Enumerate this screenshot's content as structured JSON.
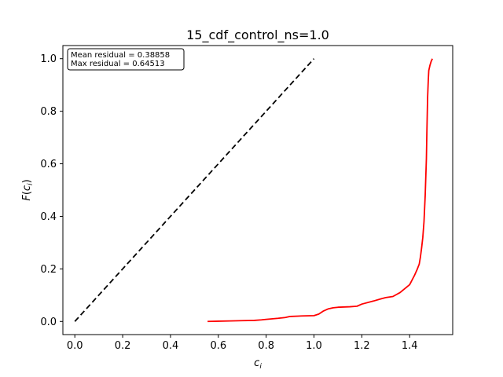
{
  "chart_data": {
    "type": "line",
    "title": "15_cdf_control_ns=1.0",
    "xlabel": "c_i",
    "ylabel": "F(c_i)",
    "xlim": [
      -0.05,
      1.58
    ],
    "ylim": [
      -0.05,
      1.05
    ],
    "x_ticks": [
      0.0,
      0.2,
      0.4,
      0.6,
      0.8,
      1.0,
      1.2,
      1.4
    ],
    "x_tick_labels": [
      "0.0",
      "0.2",
      "0.4",
      "0.6",
      "0.8",
      "1.0",
      "1.2",
      "1.4"
    ],
    "y_ticks": [
      0.0,
      0.2,
      0.4,
      0.6,
      0.8,
      1.0
    ],
    "y_tick_labels": [
      "0.0",
      "0.2",
      "0.4",
      "0.6",
      "0.8",
      "1.0"
    ],
    "grid": false,
    "annotation": {
      "lines": [
        "Mean residual = 0.38858",
        "Max residual = 0.64513"
      ],
      "placement": "top-left"
    },
    "series": [
      {
        "style": "dashed",
        "color": "#000000",
        "x": [
          0.0,
          1.0
        ],
        "y": [
          0.0,
          1.0
        ]
      },
      {
        "style": "solid",
        "color": "#ff0000",
        "x": [
          0.555,
          0.6,
          0.65,
          0.7,
          0.75,
          0.78,
          0.8,
          0.85,
          0.88,
          0.9,
          0.95,
          1.0,
          1.02,
          1.04,
          1.06,
          1.08,
          1.1,
          1.15,
          1.18,
          1.2,
          1.25,
          1.28,
          1.3,
          1.33,
          1.36,
          1.38,
          1.4,
          1.42,
          1.43,
          1.44,
          1.445,
          1.45,
          1.455,
          1.46,
          1.465,
          1.47,
          1.472,
          1.475,
          1.478,
          1.48,
          1.485,
          1.49,
          1.495
        ],
        "y": [
          0.0,
          0.001,
          0.002,
          0.003,
          0.004,
          0.006,
          0.008,
          0.012,
          0.015,
          0.019,
          0.021,
          0.022,
          0.028,
          0.04,
          0.048,
          0.052,
          0.054,
          0.056,
          0.058,
          0.066,
          0.078,
          0.086,
          0.091,
          0.095,
          0.11,
          0.125,
          0.14,
          0.175,
          0.195,
          0.218,
          0.245,
          0.28,
          0.32,
          0.38,
          0.48,
          0.62,
          0.72,
          0.85,
          0.92,
          0.955,
          0.975,
          0.99,
          1.0
        ]
      }
    ]
  }
}
